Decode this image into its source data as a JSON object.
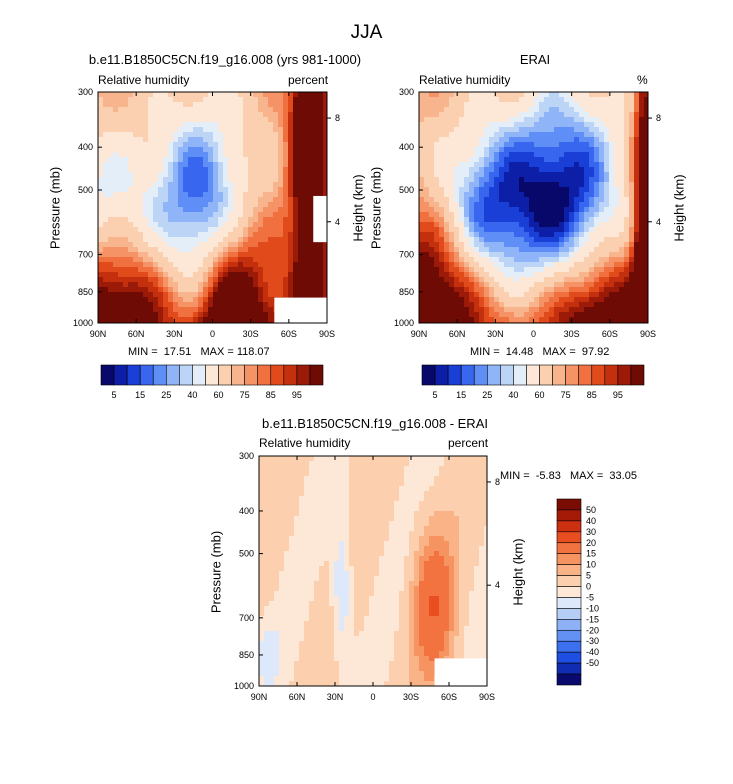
{
  "main_title": "JJA",
  "colors": {
    "rh_levels": [
      "#08086b",
      "#0c1fa6",
      "#1a3fd6",
      "#3866ee",
      "#5f8ff6",
      "#8fb4f7",
      "#bcd4f6",
      "#e3eef9",
      "#fde8d8",
      "#fbd0b0",
      "#f8b48c",
      "#f69366",
      "#f0703f",
      "#e14b1c",
      "#c4300e",
      "#9c1a08",
      "#6e0b05"
    ],
    "diff_levels": [
      "#0a0a6e",
      "#0f2cb3",
      "#1f4ee2",
      "#3c70ef",
      "#6390f3",
      "#8eb0f5",
      "#b6cdf5",
      "#dde9fa",
      "#fde8d8",
      "#fccfae",
      "#f9b387",
      "#f69461",
      "#f37340",
      "#e84e20",
      "#cd3010",
      "#a51a06",
      "#7a0c04"
    ]
  },
  "chart_data": [
    {
      "type": "heatmap",
      "title": "b.e11.B1850C5CN.f19_g16.008 (yrs 981-1000)",
      "left_label": "Relative humidity",
      "right_label": "percent",
      "ylabel": "Pressure (mb)",
      "ylabel_right": "Height (km)",
      "x_ticks": [
        "90N",
        "60N",
        "30N",
        "0",
        "30S",
        "60S",
        "90S"
      ],
      "y_ticks": [
        300,
        400,
        500,
        700,
        850,
        1000
      ],
      "height_ticks": [
        8,
        4
      ],
      "stats": "MIN =  17.51   MAX = 118.07",
      "colorbar_labels": [
        "5",
        "15",
        "25",
        "40",
        "60",
        "75",
        "85",
        "95"
      ],
      "fields": {
        "dry": [
          [
            0.03,
            0.55,
            0.7,
            0.4
          ],
          [
            0.45,
            0.5,
            0.7,
            0.5
          ]
        ],
        "moist": [
          [
            0.92,
            0.08,
            0.16,
            1.1
          ],
          [
            0.05,
            0.85,
            0.45,
            0.55
          ],
          [
            0.58,
            0.92,
            0.3,
            0.55
          ]
        ],
        "dry_strength": [
          42,
          52
        ],
        "moist_strength": [
          58,
          38,
          42
        ],
        "missing": [
          [
            0.95,
            0.5
          ],
          [
            0.78,
            0.88
          ]
        ]
      }
    },
    {
      "type": "heatmap",
      "title": "ERAI",
      "left_label": "Relative humidity",
      "right_label": "%",
      "ylabel": "Pressure (mb)",
      "ylabel_right": "Height (km)",
      "x_ticks": [
        "90N",
        "60N",
        "30N",
        "0",
        "30S",
        "60S",
        "90S"
      ],
      "y_ticks": [
        300,
        400,
        500,
        700,
        850,
        1000
      ],
      "height_ticks": [
        8,
        4
      ],
      "stats": "MIN =  14.48   MAX =  97.92",
      "colorbar_labels": [
        "5",
        "15",
        "25",
        "40",
        "60",
        "75",
        "85",
        "95"
      ],
      "fields": {
        "dry": [
          [
            0.3,
            0.5,
            0.73,
            0.42
          ],
          [
            0.64,
            0.48,
            0.82,
            0.54
          ]
        ],
        "dry_strength": [
          44,
          60
        ],
        "moist": [
          [
            0.98,
            0.55,
            0.1,
            1.2
          ],
          [
            0.04,
            0.9,
            0.4,
            0.5
          ],
          [
            0.75,
            0.94,
            0.4,
            0.45
          ]
        ],
        "moist_strength": [
          48,
          36,
          36
        ],
        "missing": []
      }
    },
    {
      "type": "heatmap",
      "title": "b.e11.B1850C5CN.f19_g16.008 - ERAI",
      "left_label": "Relative humidity",
      "right_label": "percent",
      "ylabel": "Pressure (mb)",
      "ylabel_right": "Height (km)",
      "x_ticks": [
        "90N",
        "60N",
        "30N",
        "0",
        "30S",
        "60S",
        "90S"
      ],
      "y_ticks": [
        300,
        400,
        500,
        700,
        850,
        1000
      ],
      "height_ticks": [
        8,
        4
      ],
      "stats": "MIN =  -5.83   MAX =  33.05",
      "colorbar_labels": [
        "50",
        "40",
        "30",
        "20",
        "15",
        "10",
        "5",
        "0",
        "-5",
        "-10",
        "-15",
        "-20",
        "-30",
        "-40",
        "-50"
      ]
    }
  ]
}
